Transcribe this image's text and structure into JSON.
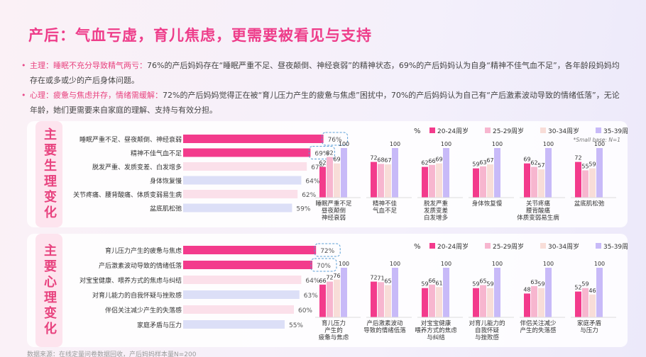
{
  "title": "产后：气血亏虚，育儿焦虑，更需要被看见与支持",
  "bullets": [
    {
      "head": "主理：睡眠不充分导致精气两亏：",
      "text": "76%的产后妈妈存在“睡眠严重不足、昼夜颠倒、神经衰弱”的精神状态，69%的产后妈妈认为自身“精神不佳气血不足”，各年龄段妈妈均存在或多或少的产后身体问题。"
    },
    {
      "head": "心理：疲惫与焦虑并存，情绪需缓解：",
      "text": "72%的产后妈妈觉得正在被“育儿压力产生的疲惫与焦虑”困扰中，70%的产后妈妈认为自己有“产后激素波动导致的情绪低落”，无论年龄，她们更需要来自家庭的理解、支持与有效分担。"
    }
  ],
  "pct_symbol": "%",
  "age_legend": [
    "20-24周岁",
    "25-29周岁",
    "30-34周岁",
    "35-39周岁"
  ],
  "colors": {
    "accent": "#ee3d8a",
    "series": [
      "#f33b8c",
      "#f7b6cf",
      "#f8ddd8",
      "#c8baf8"
    ],
    "bar_rest": "#fbe0ea",
    "bar_rest2": "#dcdff7"
  },
  "small_base_note": "*Small base: N=1",
  "source": "数据来源：在线定量问卷数据回收，产后妈妈样本量N=200",
  "chart_data": [
    {
      "type": "bar",
      "panel_label": "主要生理变化",
      "categories": [
        "睡眠严重不足、昼夜颠倒、神经衰弱",
        "精神不佳气血不足",
        "脱发严重、发质变差、白发增多",
        "身体恢复慢",
        "关节疼痛、腰背酸痛、体质变弱易生病",
        "盆底肌松弛"
      ],
      "values": [
        76,
        69,
        67,
        64,
        62,
        59
      ],
      "highlighted": [
        true,
        true,
        false,
        false,
        false,
        false
      ],
      "xlim": [
        0,
        100
      ]
    },
    {
      "type": "bar",
      "categories": [
        "睡眠严重不足\n昼夜颠倒\n神经衰弱",
        "精神不佳\n气血不足",
        "脱发严重\n发质变差\n白发增多",
        "身体恢复慢",
        "关节疼痛\n腰背酸痛\n体质变弱易生病",
        "盆底肌松弛"
      ],
      "series": [
        {
          "name": "20-24周岁",
          "values": [
            62,
            72,
            62,
            59,
            69,
            72
          ]
        },
        {
          "name": "25-29周岁",
          "values": [
            82,
            68,
            66,
            63,
            62,
            55
          ]
        },
        {
          "name": "30-34周岁",
          "values": [
            69,
            67,
            69,
            67,
            57,
            59
          ]
        },
        {
          "name": "35-39周岁",
          "values": [
            100,
            100,
            100,
            100,
            100,
            100
          ]
        }
      ],
      "ylim": [
        0,
        100
      ]
    },
    {
      "type": "bar",
      "panel_label": "主要心理变化",
      "categories": [
        "育儿压力产生的疲惫与焦虑",
        "产后激素波动导致的情绪低落",
        "对宝宝健康、喂养方式的焦虑与纠结",
        "对育儿能力的自我怀疑与挫败感",
        "伴侣关注减少产生的失落感",
        "家庭矛盾与压力"
      ],
      "values": [
        72,
        70,
        64,
        63,
        60,
        55
      ],
      "highlighted": [
        true,
        true,
        false,
        false,
        false,
        false
      ],
      "xlim": [
        0,
        100
      ]
    },
    {
      "type": "bar",
      "categories": [
        "育儿压力\n产生的\n疲惫与焦虑",
        "产后激素波动\n导致的情绪低落",
        "对宝宝健康\n喂养方式的焦虑\n与纠结",
        "对育儿能力的\n自我怀疑\n与挫败感",
        "伴侣关注减少\n产生的失落感",
        "家庭矛盾\n与压力"
      ],
      "series": [
        {
          "name": "20-24周岁",
          "values": [
            66,
            72,
            59,
            59,
            48,
            52
          ]
        },
        {
          "name": "25-29周岁",
          "values": [
            72,
            71,
            66,
            65,
            63,
            59
          ]
        },
        {
          "name": "30-34周岁",
          "values": [
            76,
            65,
            61,
            59,
            59,
            46
          ]
        },
        {
          "name": "35-39周岁",
          "values": [
            100,
            100,
            100,
            100,
            100,
            100
          ]
        }
      ],
      "ylim": [
        0,
        100
      ]
    }
  ]
}
